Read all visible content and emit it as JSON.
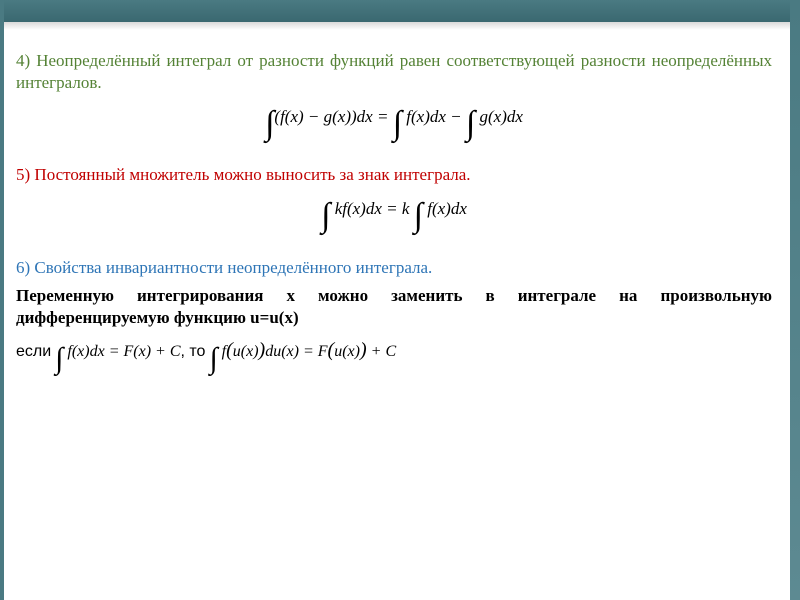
{
  "colors": {
    "accent_bar": "#4a7a82",
    "green": "#548235",
    "red": "#c00000",
    "blue": "#2e75b6",
    "text": "#000000",
    "background": "#ffffff"
  },
  "typography": {
    "body_size_pt": 13,
    "body_family": "Georgia / Times",
    "numbers_bold": false
  },
  "prop4": {
    "num": "4)",
    "num_color": "#548235",
    "text": "Неопределённый интеграл от разности функций равен соответствующей разности неопределённых интегралов.",
    "text_color": "#548235",
    "equation": "∫(f(x) − g(x))dx = ∫ f(x)dx − ∫ g(x)dx",
    "equation_color": "#000000"
  },
  "prop5": {
    "num": "5)",
    "num_color": "#c00000",
    "text": "Постоянный множитель можно выносить за знак интеграла.",
    "text_color": "#c00000",
    "equation": "∫ kf(x)dx = k ∫ f(x)dx",
    "equation_color": "#000000"
  },
  "prop6": {
    "num": "6)",
    "num_color": "#2e75b6",
    "title": "Свойства инвариантности неопределённого интеграла.",
    "title_color": "#2e75b6",
    "body": "Переменную интегрирования x можно заменить в интеграле на произвольную дифференцируемую функцию u=u(x)",
    "body_color": "#000000",
    "if_label": "если",
    "then_label": ",   то",
    "eq_left": "∫ f(x)dx = F(x) + C",
    "eq_right": "∫ f(u(x))du(x) = F(u(x)) + C",
    "equation_color": "#000000"
  }
}
